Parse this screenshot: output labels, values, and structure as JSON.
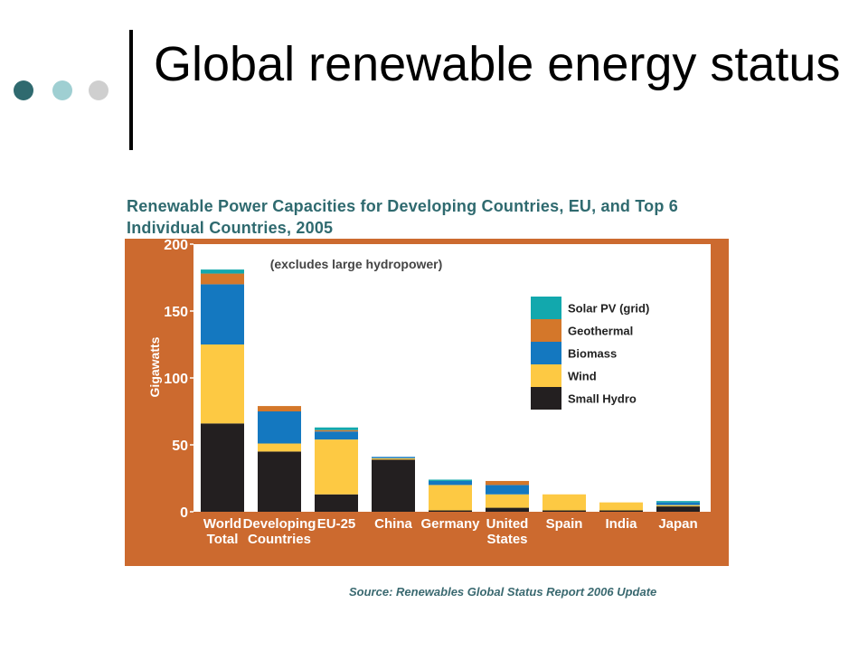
{
  "slide": {
    "title": "Global renewable energy status",
    "bullet_dot_colors": [
      "#2f6a6f",
      "#9fcfd2",
      "#cfcfcf"
    ]
  },
  "subtitle": "Renewable Power Capacities for Developing Countries, EU, and Top 6 Individual Countries, 2005",
  "source": "Source: Renewables Global Status Report 2006 Update",
  "colors": {
    "subtitle": "#2f6a6f",
    "frame": "#cc6a2f",
    "plot_bg": "#ffffff"
  },
  "chart_data": {
    "type": "bar",
    "stacked": true,
    "note": "(excludes large hydropower)",
    "ylabel": "Gigawatts",
    "ylim": [
      0,
      200
    ],
    "yticks": [
      0,
      50,
      100,
      150,
      200
    ],
    "grid": false,
    "legend_position": "top-right",
    "categories": [
      [
        "World",
        "Total"
      ],
      [
        "Developing",
        "Countries"
      ],
      [
        "EU-25"
      ],
      [
        "China"
      ],
      [
        "Germany"
      ],
      [
        "United",
        "States"
      ],
      [
        "Spain"
      ],
      [
        "India"
      ],
      [
        "Japan"
      ]
    ],
    "series": [
      {
        "name": "Small Hydro",
        "color": "#231f20",
        "values": [
          66,
          45,
          13,
          39,
          1,
          3,
          1,
          1,
          4
        ]
      },
      {
        "name": "Wind",
        "color": "#fdc943",
        "values": [
          59,
          6,
          41,
          1,
          19,
          10,
          12,
          6,
          1
        ]
      },
      {
        "name": "Biomass",
        "color": "#1478c0",
        "values": [
          45,
          24,
          6,
          1,
          3,
          7,
          0,
          0,
          2
        ]
      },
      {
        "name": "Geothermal",
        "color": "#d4772a",
        "values": [
          8,
          4,
          1,
          0,
          0,
          3,
          0,
          0,
          0
        ]
      },
      {
        "name": "Solar PV (grid)",
        "color": "#12a8ad",
        "values": [
          3,
          0,
          2,
          0,
          1,
          0,
          0,
          0,
          1
        ]
      }
    ],
    "legend_order": [
      "Solar PV (grid)",
      "Geothermal",
      "Biomass",
      "Wind",
      "Small Hydro"
    ]
  }
}
